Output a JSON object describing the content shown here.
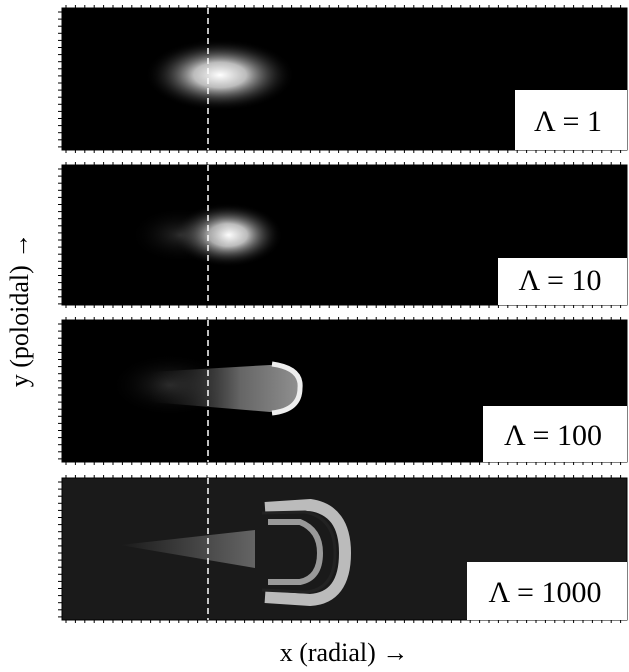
{
  "y_axis_label": "y (poloidal) →",
  "x_axis_label": "x (radial) →",
  "panels": [
    {
      "label": "Λ = 1"
    },
    {
      "label": "Λ = 10"
    },
    {
      "label": "Λ = 100"
    },
    {
      "label": "Λ = 1000"
    }
  ]
}
